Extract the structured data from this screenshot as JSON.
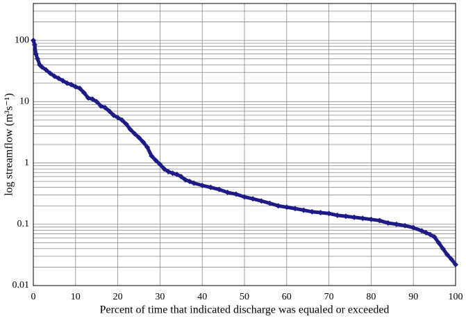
{
  "chart_data": {
    "type": "scatter",
    "x_label": "Percent of time that indicated discharge was equaled or exceeded",
    "y_label": "log streamflow (m³s⁻¹)",
    "x": [
      0,
      0.3,
      0.6,
      1,
      1.5,
      2,
      3,
      4,
      5,
      6,
      7,
      8,
      9,
      10,
      11,
      12,
      13,
      14,
      15,
      16,
      17,
      18,
      19,
      20,
      21,
      22,
      23,
      24,
      25,
      26,
      27,
      28,
      29,
      30,
      31,
      32,
      33,
      34,
      35,
      36,
      37,
      38,
      40,
      42,
      44,
      46,
      48,
      50,
      52,
      54,
      56,
      58,
      60,
      62,
      64,
      66,
      68,
      70,
      72,
      74,
      76,
      78,
      80,
      82,
      84,
      86,
      88,
      90,
      92,
      93,
      94,
      95,
      96,
      97,
      98,
      99,
      100
    ],
    "values": [
      100,
      85,
      60,
      50,
      40,
      37,
      33,
      29,
      26,
      24,
      22,
      20,
      19,
      17.5,
      16.5,
      14,
      11.5,
      11,
      10,
      8.5,
      8,
      7,
      6,
      5.5,
      5,
      4.3,
      3.5,
      3,
      2.6,
      2.2,
      1.8,
      1.3,
      1.1,
      0.95,
      0.8,
      0.72,
      0.68,
      0.65,
      0.6,
      0.53,
      0.5,
      0.47,
      0.43,
      0.4,
      0.37,
      0.33,
      0.31,
      0.28,
      0.26,
      0.24,
      0.22,
      0.2,
      0.19,
      0.18,
      0.17,
      0.16,
      0.155,
      0.15,
      0.14,
      0.135,
      0.13,
      0.125,
      0.12,
      0.115,
      0.105,
      0.1,
      0.095,
      0.088,
      0.078,
      0.073,
      0.068,
      0.062,
      0.05,
      0.04,
      0.032,
      0.027,
      0.022
    ],
    "color": "#1c1c84",
    "xlim": [
      0,
      100
    ],
    "xticks": [
      0,
      10,
      20,
      30,
      40,
      50,
      60,
      70,
      80,
      90,
      100
    ],
    "ylim": [
      0.01,
      400
    ],
    "yticks": [
      0.01,
      0.1,
      1,
      10,
      100
    ],
    "log_y": true,
    "grid": true,
    "minor_grid": true
  }
}
